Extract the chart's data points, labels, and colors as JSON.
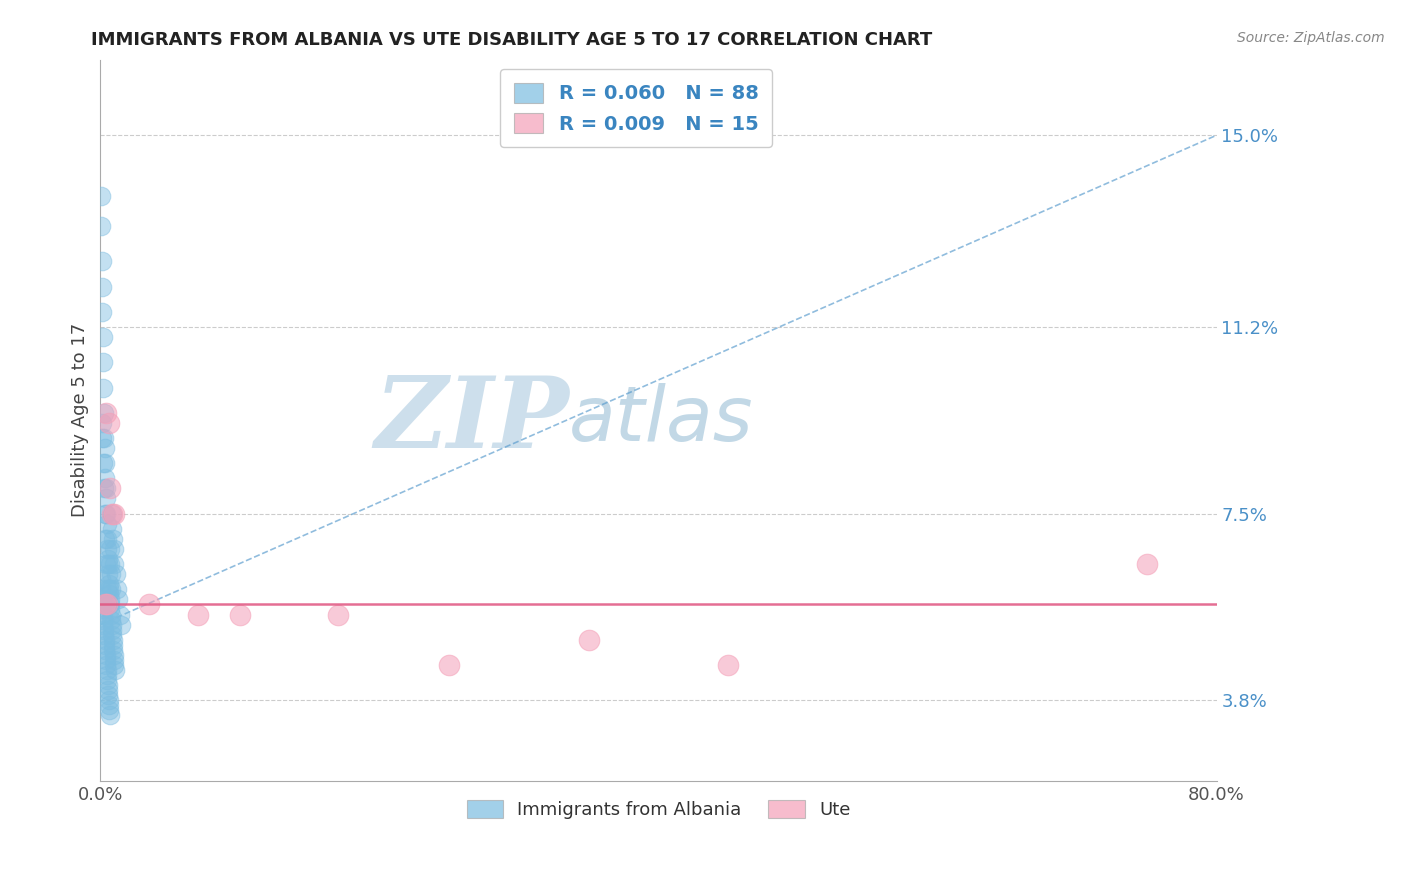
{
  "title": "IMMIGRANTS FROM ALBANIA VS UTE DISABILITY AGE 5 TO 17 CORRELATION CHART",
  "source": "Source: ZipAtlas.com",
  "ylabel_label": "Disability Age 5 to 17",
  "xlim": [
    0.0,
    80.0
  ],
  "ylim": [
    2.2,
    16.5
  ],
  "ylabel_vals": [
    3.8,
    7.5,
    11.2,
    15.0
  ],
  "ylabel_ticks": [
    "3.8%",
    "7.5%",
    "11.2%",
    "15.0%"
  ],
  "xtick_vals": [
    0.0,
    80.0
  ],
  "xtick_labels": [
    "0.0%",
    "80.0%"
  ],
  "legend_blue_label": "Immigrants from Albania",
  "legend_pink_label": "Ute",
  "legend_blue_r": "R = 0.060",
  "legend_blue_n": "N = 88",
  "legend_pink_r": "R = 0.009",
  "legend_pink_n": "N = 15",
  "blue_color": "#7bbce0",
  "pink_color": "#f4a0b8",
  "trendline_blue_color": "#5599cc",
  "trendline_pink_color": "#e05580",
  "watermark_zip": "ZIP",
  "watermark_atlas": "atlas",
  "blue_trend_x": [
    0.0,
    80.0
  ],
  "blue_trend_y": [
    5.3,
    15.0
  ],
  "pink_trend_x": [
    0.0,
    80.0
  ],
  "pink_trend_y": [
    5.7,
    5.7
  ],
  "blue_dots_x": [
    0.05,
    0.08,
    0.1,
    0.12,
    0.15,
    0.18,
    0.2,
    0.22,
    0.25,
    0.28,
    0.3,
    0.32,
    0.35,
    0.38,
    0.4,
    0.42,
    0.45,
    0.48,
    0.5,
    0.52,
    0.55,
    0.58,
    0.6,
    0.62,
    0.65,
    0.68,
    0.7,
    0.72,
    0.75,
    0.78,
    0.8,
    0.82,
    0.85,
    0.88,
    0.9,
    0.92,
    0.95,
    0.98,
    1.0,
    1.05,
    0.05,
    0.08,
    0.1,
    0.12,
    0.15,
    0.18,
    0.2,
    0.22,
    0.25,
    0.28,
    0.3,
    0.32,
    0.35,
    0.38,
    0.4,
    0.42,
    0.45,
    0.48,
    0.5,
    0.52,
    0.55,
    0.58,
    0.6,
    0.62,
    0.65,
    0.68,
    0.7,
    0.72,
    0.75,
    0.78,
    0.8,
    0.85,
    0.9,
    0.95,
    1.0,
    1.1,
    1.2,
    1.3,
    1.4,
    1.5,
    0.1,
    0.15,
    0.2,
    0.25,
    0.3,
    0.35,
    0.4,
    0.45
  ],
  "blue_dots_y": [
    13.8,
    13.2,
    12.5,
    12.0,
    11.5,
    11.0,
    10.5,
    10.0,
    9.5,
    9.0,
    8.8,
    8.5,
    8.2,
    8.0,
    7.8,
    7.5,
    7.3,
    7.0,
    6.8,
    6.6,
    6.5,
    6.3,
    6.1,
    6.0,
    5.9,
    5.8,
    5.7,
    5.6,
    5.5,
    5.4,
    5.3,
    5.2,
    5.1,
    5.0,
    4.9,
    4.8,
    4.7,
    4.6,
    4.5,
    4.4,
    6.2,
    6.0,
    5.8,
    5.7,
    5.6,
    5.5,
    5.4,
    5.3,
    5.2,
    5.1,
    5.0,
    4.9,
    4.8,
    4.7,
    4.6,
    4.5,
    4.4,
    4.3,
    4.2,
    4.1,
    4.0,
    3.9,
    3.8,
    3.7,
    3.6,
    3.5,
    6.8,
    6.5,
    6.3,
    6.0,
    7.5,
    7.2,
    7.0,
    6.8,
    6.5,
    6.3,
    6.0,
    5.8,
    5.5,
    5.3,
    9.3,
    9.0,
    8.5,
    8.0,
    7.5,
    7.0,
    6.5,
    6.0
  ],
  "pink_dots_x": [
    0.4,
    0.6,
    0.7,
    0.85,
    1.0,
    3.5,
    7.0,
    10.0,
    17.0,
    25.0,
    35.0,
    45.0,
    75.0,
    0.3,
    0.5
  ],
  "pink_dots_y": [
    9.5,
    9.3,
    8.0,
    7.5,
    7.5,
    5.7,
    5.5,
    5.5,
    5.5,
    4.5,
    5.0,
    4.5,
    6.5,
    5.7,
    5.7
  ]
}
